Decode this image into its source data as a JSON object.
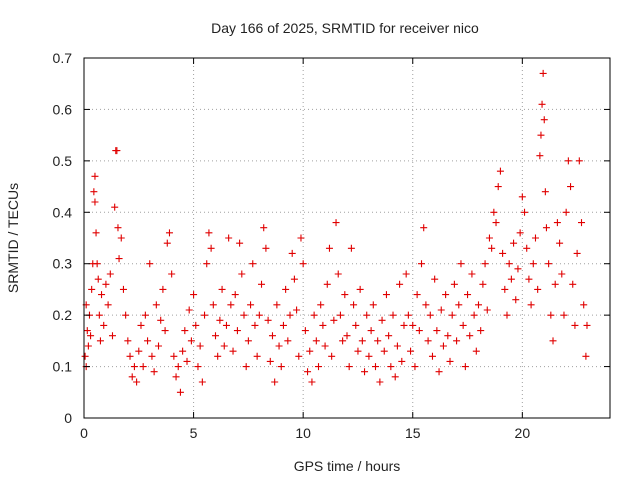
{
  "chart_data": {
    "type": "scatter",
    "title": "Day 166 of 2025, SRMTID for receiver nico",
    "xlabel": "GPS time / hours",
    "ylabel": "SRMTID / TECUs",
    "xlim": [
      0,
      24
    ],
    "ylim": [
      0,
      0.7
    ],
    "x_ticks": [
      0,
      5,
      10,
      15,
      20
    ],
    "y_ticks": [
      0,
      0.1,
      0.2,
      0.3,
      0.4,
      0.5,
      0.6,
      0.7
    ],
    "x_tick_labels": [
      "0",
      "5",
      "10",
      "15",
      "20"
    ],
    "y_tick_labels": [
      "0",
      "0.1",
      "0.2",
      "0.3",
      "0.4",
      "0.5",
      "0.6",
      "0.7"
    ],
    "grid": true,
    "marker": "plus",
    "color": "#e00000",
    "series": [
      {
        "name": "SRMTID",
        "points": [
          [
            0.05,
            0.12
          ],
          [
            0.1,
            0.1
          ],
          [
            0.1,
            0.22
          ],
          [
            0.15,
            0.17
          ],
          [
            0.2,
            0.14
          ],
          [
            0.25,
            0.2
          ],
          [
            0.3,
            0.16
          ],
          [
            0.35,
            0.25
          ],
          [
            0.4,
            0.3
          ],
          [
            0.45,
            0.44
          ],
          [
            0.5,
            0.47
          ],
          [
            0.5,
            0.42
          ],
          [
            0.55,
            0.36
          ],
          [
            0.6,
            0.3
          ],
          [
            0.65,
            0.27
          ],
          [
            0.7,
            0.2
          ],
          [
            0.75,
            0.15
          ],
          [
            0.8,
            0.24
          ],
          [
            0.9,
            0.18
          ],
          [
            1.0,
            0.26
          ],
          [
            1.1,
            0.22
          ],
          [
            1.2,
            0.28
          ],
          [
            1.3,
            0.16
          ],
          [
            1.4,
            0.41
          ],
          [
            1.45,
            0.52
          ],
          [
            1.5,
            0.52
          ],
          [
            1.55,
            0.37
          ],
          [
            1.6,
            0.31
          ],
          [
            1.7,
            0.35
          ],
          [
            1.8,
            0.25
          ],
          [
            1.9,
            0.2
          ],
          [
            2.0,
            0.15
          ],
          [
            2.1,
            0.12
          ],
          [
            2.2,
            0.08
          ],
          [
            2.3,
            0.1
          ],
          [
            2.4,
            0.07
          ],
          [
            2.5,
            0.13
          ],
          [
            2.6,
            0.18
          ],
          [
            2.7,
            0.1
          ],
          [
            2.8,
            0.2
          ],
          [
            2.9,
            0.15
          ],
          [
            3.0,
            0.3
          ],
          [
            3.1,
            0.12
          ],
          [
            3.2,
            0.09
          ],
          [
            3.3,
            0.22
          ],
          [
            3.4,
            0.14
          ],
          [
            3.5,
            0.19
          ],
          [
            3.6,
            0.25
          ],
          [
            3.7,
            0.17
          ],
          [
            3.8,
            0.34
          ],
          [
            3.9,
            0.36
          ],
          [
            4.0,
            0.28
          ],
          [
            4.1,
            0.12
          ],
          [
            4.2,
            0.08
          ],
          [
            4.3,
            0.1
          ],
          [
            4.4,
            0.05
          ],
          [
            4.5,
            0.13
          ],
          [
            4.6,
            0.17
          ],
          [
            4.7,
            0.11
          ],
          [
            4.8,
            0.21
          ],
          [
            4.9,
            0.15
          ],
          [
            5.0,
            0.24
          ],
          [
            5.1,
            0.18
          ],
          [
            5.2,
            0.1
          ],
          [
            5.3,
            0.14
          ],
          [
            5.4,
            0.07
          ],
          [
            5.5,
            0.2
          ],
          [
            5.6,
            0.3
          ],
          [
            5.7,
            0.36
          ],
          [
            5.8,
            0.33
          ],
          [
            5.9,
            0.22
          ],
          [
            6.0,
            0.16
          ],
          [
            6.1,
            0.12
          ],
          [
            6.2,
            0.19
          ],
          [
            6.3,
            0.25
          ],
          [
            6.4,
            0.14
          ],
          [
            6.5,
            0.18
          ],
          [
            6.6,
            0.35
          ],
          [
            6.7,
            0.22
          ],
          [
            6.8,
            0.13
          ],
          [
            6.9,
            0.24
          ],
          [
            7.0,
            0.17
          ],
          [
            7.1,
            0.34
          ],
          [
            7.2,
            0.28
          ],
          [
            7.3,
            0.2
          ],
          [
            7.4,
            0.1
          ],
          [
            7.5,
            0.15
          ],
          [
            7.6,
            0.22
          ],
          [
            7.7,
            0.3
          ],
          [
            7.8,
            0.18
          ],
          [
            7.9,
            0.12
          ],
          [
            8.0,
            0.2
          ],
          [
            8.1,
            0.26
          ],
          [
            8.2,
            0.37
          ],
          [
            8.3,
            0.33
          ],
          [
            8.4,
            0.19
          ],
          [
            8.5,
            0.11
          ],
          [
            8.6,
            0.16
          ],
          [
            8.7,
            0.07
          ],
          [
            8.8,
            0.22
          ],
          [
            8.9,
            0.14
          ],
          [
            9.0,
            0.1
          ],
          [
            9.1,
            0.18
          ],
          [
            9.2,
            0.25
          ],
          [
            9.3,
            0.15
          ],
          [
            9.4,
            0.2
          ],
          [
            9.5,
            0.32
          ],
          [
            9.6,
            0.27
          ],
          [
            9.7,
            0.21
          ],
          [
            9.8,
            0.12
          ],
          [
            9.9,
            0.35
          ],
          [
            10.0,
            0.3
          ],
          [
            10.1,
            0.17
          ],
          [
            10.2,
            0.09
          ],
          [
            10.3,
            0.13
          ],
          [
            10.4,
            0.07
          ],
          [
            10.5,
            0.2
          ],
          [
            10.6,
            0.15
          ],
          [
            10.7,
            0.1
          ],
          [
            10.8,
            0.22
          ],
          [
            10.9,
            0.18
          ],
          [
            11.0,
            0.14
          ],
          [
            11.1,
            0.26
          ],
          [
            11.2,
            0.33
          ],
          [
            11.3,
            0.12
          ],
          [
            11.4,
            0.19
          ],
          [
            11.5,
            0.38
          ],
          [
            11.6,
            0.28
          ],
          [
            11.7,
            0.2
          ],
          [
            11.8,
            0.15
          ],
          [
            11.9,
            0.24
          ],
          [
            12.0,
            0.16
          ],
          [
            12.1,
            0.1
          ],
          [
            12.2,
            0.33
          ],
          [
            12.3,
            0.22
          ],
          [
            12.4,
            0.18
          ],
          [
            12.5,
            0.13
          ],
          [
            12.6,
            0.25
          ],
          [
            12.7,
            0.15
          ],
          [
            12.8,
            0.09
          ],
          [
            12.9,
            0.2
          ],
          [
            13.0,
            0.12
          ],
          [
            13.1,
            0.17
          ],
          [
            13.2,
            0.22
          ],
          [
            13.3,
            0.1
          ],
          [
            13.4,
            0.15
          ],
          [
            13.5,
            0.07
          ],
          [
            13.6,
            0.19
          ],
          [
            13.7,
            0.13
          ],
          [
            13.8,
            0.24
          ],
          [
            13.9,
            0.16
          ],
          [
            14.0,
            0.1
          ],
          [
            14.1,
            0.2
          ],
          [
            14.2,
            0.08
          ],
          [
            14.3,
            0.14
          ],
          [
            14.4,
            0.26
          ],
          [
            14.5,
            0.11
          ],
          [
            14.6,
            0.18
          ],
          [
            14.7,
            0.28
          ],
          [
            14.8,
            0.2
          ],
          [
            14.9,
            0.13
          ],
          [
            15.0,
            0.18
          ],
          [
            15.1,
            0.1
          ],
          [
            15.2,
            0.24
          ],
          [
            15.3,
            0.17
          ],
          [
            15.4,
            0.3
          ],
          [
            15.5,
            0.37
          ],
          [
            15.6,
            0.22
          ],
          [
            15.7,
            0.15
          ],
          [
            15.8,
            0.2
          ],
          [
            15.9,
            0.12
          ],
          [
            16.0,
            0.27
          ],
          [
            16.1,
            0.17
          ],
          [
            16.2,
            0.09
          ],
          [
            16.3,
            0.21
          ],
          [
            16.4,
            0.14
          ],
          [
            16.5,
            0.24
          ],
          [
            16.6,
            0.16
          ],
          [
            16.7,
            0.11
          ],
          [
            16.8,
            0.2
          ],
          [
            16.9,
            0.26
          ],
          [
            17.0,
            0.15
          ],
          [
            17.1,
            0.22
          ],
          [
            17.2,
            0.3
          ],
          [
            17.3,
            0.18
          ],
          [
            17.4,
            0.1
          ],
          [
            17.5,
            0.24
          ],
          [
            17.6,
            0.16
          ],
          [
            17.7,
            0.28
          ],
          [
            17.8,
            0.2
          ],
          [
            17.9,
            0.13
          ],
          [
            18.0,
            0.22
          ],
          [
            18.1,
            0.17
          ],
          [
            18.2,
            0.26
          ],
          [
            18.3,
            0.3
          ],
          [
            18.4,
            0.21
          ],
          [
            18.5,
            0.35
          ],
          [
            18.6,
            0.33
          ],
          [
            18.7,
            0.4
          ],
          [
            18.8,
            0.38
          ],
          [
            18.9,
            0.45
          ],
          [
            19.0,
            0.48
          ],
          [
            19.1,
            0.32
          ],
          [
            19.2,
            0.25
          ],
          [
            19.3,
            0.2
          ],
          [
            19.4,
            0.3
          ],
          [
            19.5,
            0.27
          ],
          [
            19.6,
            0.34
          ],
          [
            19.7,
            0.23
          ],
          [
            19.8,
            0.29
          ],
          [
            19.9,
            0.36
          ],
          [
            20.0,
            0.43
          ],
          [
            20.1,
            0.4
          ],
          [
            20.2,
            0.33
          ],
          [
            20.3,
            0.27
          ],
          [
            20.4,
            0.22
          ],
          [
            20.5,
            0.3
          ],
          [
            20.6,
            0.35
          ],
          [
            20.7,
            0.25
          ],
          [
            20.8,
            0.51
          ],
          [
            20.85,
            0.55
          ],
          [
            20.9,
            0.61
          ],
          [
            20.95,
            0.67
          ],
          [
            21.0,
            0.58
          ],
          [
            21.05,
            0.44
          ],
          [
            21.1,
            0.37
          ],
          [
            21.2,
            0.3
          ],
          [
            21.3,
            0.2
          ],
          [
            21.4,
            0.15
          ],
          [
            21.5,
            0.26
          ],
          [
            21.6,
            0.38
          ],
          [
            21.7,
            0.34
          ],
          [
            21.8,
            0.28
          ],
          [
            21.9,
            0.2
          ],
          [
            22.0,
            0.4
          ],
          [
            22.1,
            0.5
          ],
          [
            22.2,
            0.45
          ],
          [
            22.3,
            0.26
          ],
          [
            22.4,
            0.18
          ],
          [
            22.5,
            0.32
          ],
          [
            22.6,
            0.5
          ],
          [
            22.7,
            0.38
          ],
          [
            22.8,
            0.22
          ],
          [
            22.9,
            0.12
          ],
          [
            22.95,
            0.18
          ]
        ]
      }
    ]
  }
}
